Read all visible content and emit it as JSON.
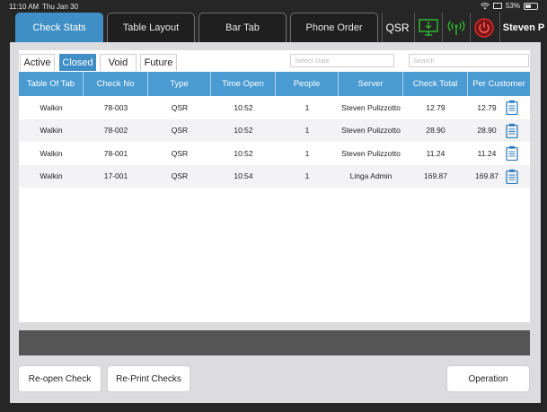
{
  "status": {
    "time": "11:10 AM",
    "date": "Thu Jan 30",
    "battery": "53%",
    "battery_level": 0.53
  },
  "tabs": [
    {
      "label": "Check Stats",
      "active": true
    },
    {
      "label": "Table Layout",
      "active": false
    },
    {
      "label": "Bar Tab",
      "active": false
    },
    {
      "label": "Phone Order",
      "active": false
    }
  ],
  "mode": "QSR",
  "user": "Steven P",
  "icons": {
    "monitor": "monitor-download-icon",
    "signal": "wireless-signal-icon",
    "power": "power-icon"
  },
  "colors": {
    "accent": "#3f8fc6",
    "header": "#4a9bd2",
    "monitor": "#2fae2f",
    "signal": "#2fae2f",
    "power": "#d62a2a"
  },
  "subtabs": [
    {
      "label": "Active",
      "active": false
    },
    {
      "label": "Closed",
      "active": true
    },
    {
      "label": "Void",
      "active": false
    },
    {
      "label": "Future",
      "active": false
    }
  ],
  "filters": {
    "date_placeholder": "Select Date",
    "search_placeholder": "Search"
  },
  "table": {
    "headers": [
      "Table Of Tab",
      "Check No",
      "Type",
      "Time Open",
      "People",
      "Server",
      "Check Total",
      "Per Customer"
    ],
    "rows": [
      [
        "Walkin",
        "78-003",
        "QSR",
        "10:52",
        "1",
        "Steven Pulizzotto",
        "12.79",
        "12.79"
      ],
      [
        "Walkin",
        "78-002",
        "QSR",
        "10:52",
        "1",
        "Steven Pulizzotto",
        "28.90",
        "28.90"
      ],
      [
        "Walkin",
        "78-001",
        "QSR",
        "10:52",
        "1",
        "Steven Pulizzotto",
        "11.24",
        "11.24"
      ],
      [
        "Walkin",
        "17-001",
        "QSR",
        "10:54",
        "1",
        "Linga Admin",
        "169.87",
        "169.87"
      ]
    ]
  },
  "buttons": {
    "reopen": "Re-open Check",
    "reprint": "Re-Print Checks",
    "operation": "Operation"
  }
}
